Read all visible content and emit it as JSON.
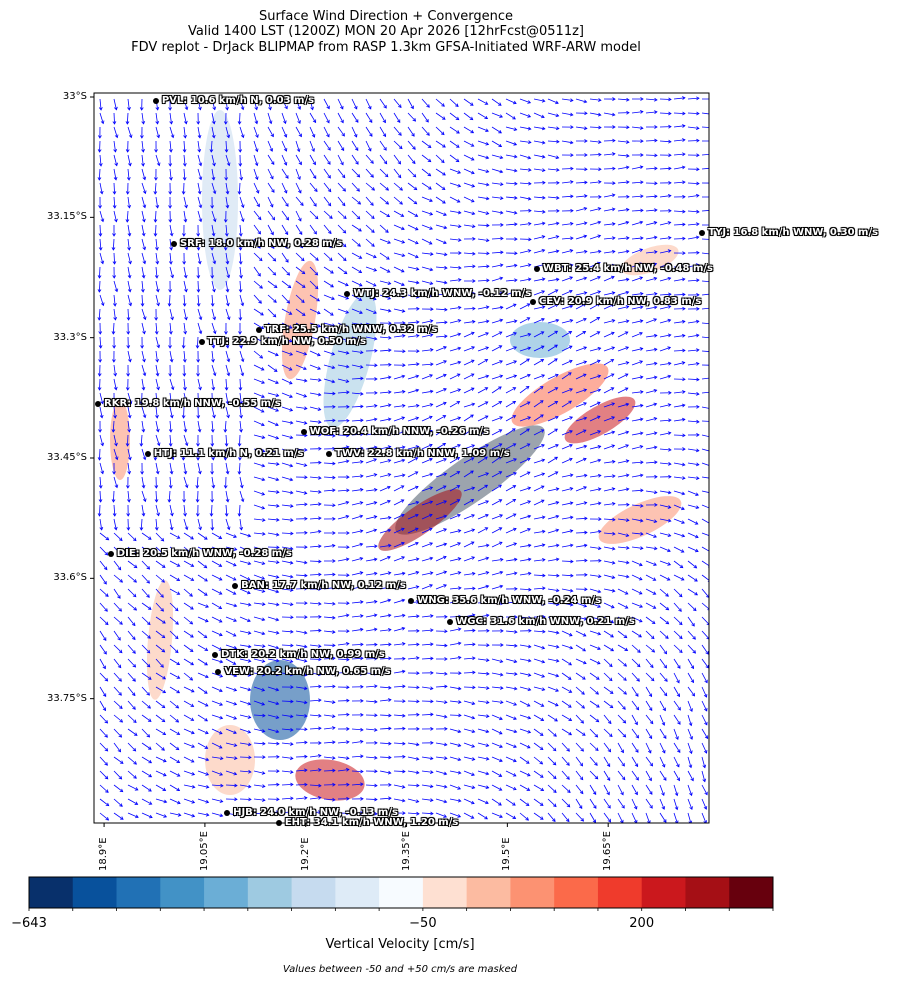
{
  "title_lines": [
    "Surface Wind Direction + Convergence",
    "Valid 1400 LST (1200Z) MON 20 Apr 2026 [12hrFcst@0511z]",
    "FDV replot - DrJack BLIPMAP from RASP 1.3km GFSA-Initiated WRF-ARW model"
  ],
  "chart_data": {
    "type": "heatmap",
    "title": "Surface Wind Direction + Convergence",
    "xlabel": "",
    "ylabel": "",
    "x_ticks": [
      "18.9°E",
      "19.05°E",
      "19.2°E",
      "19.35°E",
      "19.5°E",
      "19.65°E"
    ],
    "x_tick_values": [
      18.9,
      19.05,
      19.2,
      19.35,
      19.5,
      19.65
    ],
    "y_ticks": [
      "33°S",
      "33.15°S",
      "33.3°S",
      "33.45°S",
      "33.6°S",
      "33.75°S"
    ],
    "y_tick_values": [
      -33.0,
      -33.15,
      -33.3,
      -33.45,
      -33.6,
      -33.75
    ],
    "xlim": [
      18.885,
      19.8
    ],
    "ylim": [
      -33.905,
      -32.995
    ],
    "vector_field": "surface wind arrows (blue)",
    "stations": [
      {
        "code": "PVL",
        "label": "PVL: 10.6 km/h N, 0.03 m/s",
        "lon": 18.977,
        "lat": -33.005
      },
      {
        "code": "TYJ",
        "label": "TYJ: 16.8 km/h WNW, 0.30 m/s",
        "lon": 19.79,
        "lat": -33.17
      },
      {
        "code": "SRF",
        "label": "SRF: 18.0 km/h NW, 0.28 m/s",
        "lon": 19.004,
        "lat": -33.183
      },
      {
        "code": "WBT",
        "label": "WBT: 25.4 km/h NW, -0.48 m/s",
        "lon": 19.544,
        "lat": -33.215
      },
      {
        "code": "WTJ",
        "label": "WTJ: 24.3 km/h WNW, -0.12 m/s",
        "lon": 19.262,
        "lat": -33.245
      },
      {
        "code": "CEV",
        "label": "CEV: 20.9 km/h NW, 0.83 m/s",
        "lon": 19.538,
        "lat": -33.255
      },
      {
        "code": "TRF",
        "label": "TRF: 25.5 km/h WNW, 0.32 m/s",
        "lon": 19.13,
        "lat": -33.29
      },
      {
        "code": "TTJ",
        "label": "TTJ: 22.9 km/h NW, 0.50 m/s",
        "lon": 19.045,
        "lat": -33.305
      },
      {
        "code": "RKR",
        "label": "RKR: 19.8 km/h NNW, -0.55 m/s",
        "lon": 18.891,
        "lat": -33.383
      },
      {
        "code": "WOF",
        "label": "WOF: 20.4 km/h NNW, -0.26 m/s",
        "lon": 19.197,
        "lat": -33.418
      },
      {
        "code": "HTJ",
        "label": "HTJ: 11.1 km/h N, 0.21 m/s",
        "lon": 18.965,
        "lat": -33.445
      },
      {
        "code": "TWV",
        "label": "TWV: 22.8 km/h NNW, 1.09 m/s",
        "lon": 19.235,
        "lat": -33.445
      },
      {
        "code": "DIE",
        "label": "DIE: 20.5 km/h WNW, -0.28 m/s",
        "lon": 18.91,
        "lat": -33.57
      },
      {
        "code": "BAN",
        "label": "BAN: 17.7 km/h NW, 0.12 m/s",
        "lon": 19.095,
        "lat": -33.61
      },
      {
        "code": "WNG",
        "label": "WNG: 35.6 km/h WNW, -0.24 m/s",
        "lon": 19.357,
        "lat": -33.628
      },
      {
        "code": "WGC",
        "label": "WGC: 31.6 km/h WNW, 0.21 m/s",
        "lon": 19.415,
        "lat": -33.655
      },
      {
        "code": "DTK",
        "label": "DTK: 20.2 km/h NW, 0.99 m/s",
        "lon": 19.065,
        "lat": -33.695
      },
      {
        "code": "VEW",
        "label": "VEW: 20.2 km/h NW, 0.65 m/s",
        "lon": 19.07,
        "lat": -33.717
      },
      {
        "code": "HJB",
        "label": "HJB: 24.0 km/h NW, -0.13 m/s",
        "lon": 19.083,
        "lat": -33.893
      },
      {
        "code": "EHT",
        "label": "EHT: 34.1 km/h WNW, 1.20 m/s",
        "lon": 19.16,
        "lat": -33.905
      }
    ],
    "colorbar": {
      "label": "Vertical Velocity [cm/s]",
      "tick_labels": [
        "−643",
        "−50",
        "200"
      ],
      "colors": [
        "#08306b",
        "#08519c",
        "#2171b5",
        "#4292c6",
        "#6baed6",
        "#9ecae1",
        "#c6dbef",
        "#deebf7",
        "#f7fbff",
        "#fee0d2",
        "#fcbba1",
        "#fc9272",
        "#fb6a4a",
        "#ef3b2c",
        "#cb181d",
        "#a50f15",
        "#67000d"
      ]
    },
    "footnote": "Values between -50 and +50 cm/s are masked",
    "grid": false
  }
}
